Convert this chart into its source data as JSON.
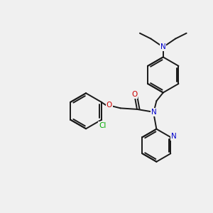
{
  "bg_color": "#f0f0f0",
  "bond_color": "#1a1a1a",
  "N_color": "#0000cc",
  "O_color": "#cc0000",
  "Cl_color": "#00aa00",
  "bond_width": 1.4,
  "dbo": 0.035,
  "figsize": [
    3.0,
    3.0
  ],
  "dpi": 100,
  "xlim": [
    -2.2,
    1.6
  ],
  "ylim": [
    -1.5,
    1.8
  ]
}
